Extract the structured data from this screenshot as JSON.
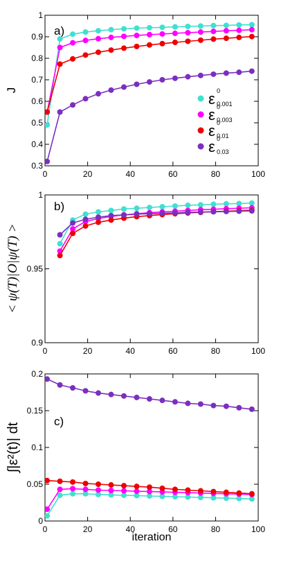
{
  "chart_data": [
    {
      "type": "line",
      "panel_label": "a)",
      "xlabel": "",
      "ylabel": "J",
      "xlim": [
        0,
        100
      ],
      "ylim": [
        0.3,
        1
      ],
      "xticks": [
        "0",
        "20",
        "40",
        "60",
        "80",
        "100"
      ],
      "yticks": [
        "0.3",
        "0.4",
        "0.5",
        "0.6",
        "0.7",
        "0.8",
        "0.9",
        "1"
      ],
      "legend_position": "right-middle",
      "series": [
        {
          "name": "ε0_0.001",
          "color": "#40e0d0",
          "x": [
            1,
            7,
            13,
            19,
            25,
            31,
            37,
            43,
            49,
            55,
            61,
            67,
            73,
            79,
            85,
            91,
            97
          ],
          "y": [
            0.49,
            0.89,
            0.912,
            0.922,
            0.928,
            0.933,
            0.937,
            0.94,
            0.942,
            0.944,
            0.946,
            0.948,
            0.95,
            0.952,
            0.953,
            0.955,
            0.956
          ]
        },
        {
          "name": "ε0_0.003",
          "color": "#ff00ff",
          "x": [
            1,
            7,
            13,
            19,
            25,
            31,
            37,
            43,
            49,
            55,
            61,
            67,
            73,
            79,
            85,
            91,
            97
          ],
          "y": [
            0.55,
            0.85,
            0.872,
            0.883,
            0.891,
            0.897,
            0.902,
            0.906,
            0.91,
            0.913,
            0.916,
            0.919,
            0.922,
            0.925,
            0.928,
            0.93,
            0.933
          ]
        },
        {
          "name": "ε0_0.01",
          "color": "#ee0000",
          "x": [
            1,
            7,
            13,
            19,
            25,
            31,
            37,
            43,
            49,
            55,
            61,
            67,
            73,
            79,
            85,
            91,
            97
          ],
          "y": [
            0.55,
            0.773,
            0.797,
            0.815,
            0.828,
            0.838,
            0.847,
            0.855,
            0.862,
            0.868,
            0.874,
            0.879,
            0.884,
            0.889,
            0.893,
            0.897,
            0.901
          ]
        },
        {
          "name": "ε0_0.03",
          "color": "#7b2fbe",
          "x": [
            1,
            7,
            13,
            19,
            25,
            31,
            37,
            43,
            49,
            55,
            61,
            67,
            73,
            79,
            85,
            91,
            97
          ],
          "y": [
            0.32,
            0.55,
            0.583,
            0.612,
            0.635,
            0.652,
            0.666,
            0.679,
            0.69,
            0.7,
            0.707,
            0.714,
            0.72,
            0.726,
            0.731,
            0.735,
            0.74
          ]
        }
      ]
    },
    {
      "type": "line",
      "panel_label": "b)",
      "xlabel": "",
      "ylabel": "< ψ(T)|O|ψ(T) >",
      "xlim": [
        0,
        100
      ],
      "ylim": [
        0.9,
        1
      ],
      "xticks": [
        "0",
        "20",
        "40",
        "60",
        "80",
        "100"
      ],
      "yticks": [
        "0.9",
        "0.95",
        "1"
      ],
      "series": [
        {
          "name": "ε0_0.001",
          "color": "#40e0d0",
          "x": [
            7,
            13,
            19,
            25,
            31,
            37,
            43,
            49,
            55,
            61,
            67,
            73,
            79,
            85,
            91,
            97
          ],
          "y": [
            0.967,
            0.983,
            0.987,
            0.9885,
            0.9895,
            0.9905,
            0.991,
            0.9915,
            0.992,
            0.9925,
            0.993,
            0.9933,
            0.9937,
            0.994,
            0.9942,
            0.9945
          ]
        },
        {
          "name": "ε0_0.003",
          "color": "#ff00ff",
          "x": [
            7,
            13,
            19,
            25,
            31,
            37,
            43,
            49,
            55,
            61,
            67,
            73,
            79,
            85,
            91,
            97
          ],
          "y": [
            0.962,
            0.977,
            0.982,
            0.984,
            0.9855,
            0.9865,
            0.9873,
            0.988,
            0.9885,
            0.989,
            0.9895,
            0.99,
            0.9903,
            0.9907,
            0.991,
            0.9913
          ]
        },
        {
          "name": "ε0_0.01",
          "color": "#ee0000",
          "x": [
            7,
            13,
            19,
            25,
            31,
            37,
            43,
            49,
            55,
            61,
            67,
            73,
            79,
            85,
            91,
            97
          ],
          "y": [
            0.959,
            0.974,
            0.979,
            0.9815,
            0.983,
            0.9843,
            0.9853,
            0.986,
            0.9867,
            0.9873,
            0.9878,
            0.9882,
            0.9887,
            0.989,
            0.9893,
            0.9897
          ]
        },
        {
          "name": "ε0_0.03",
          "color": "#7b2fbe",
          "x": [
            7,
            13,
            19,
            25,
            31,
            37,
            43,
            49,
            55,
            61,
            67,
            73,
            79,
            85,
            91,
            97
          ],
          "y": [
            0.973,
            0.981,
            0.9835,
            0.985,
            0.986,
            0.9865,
            0.987,
            0.9873,
            0.9876,
            0.9879,
            0.9882,
            0.9884,
            0.9886,
            0.9888,
            0.989,
            0.9892
          ]
        }
      ]
    },
    {
      "type": "line",
      "panel_label": "c)",
      "xlabel": "iteration",
      "ylabel": "∫|ε²(t)| dt",
      "xlim": [
        0,
        100
      ],
      "ylim": [
        0,
        0.2
      ],
      "xticks": [
        "0",
        "20",
        "40",
        "60",
        "80",
        "100"
      ],
      "yticks": [
        "0",
        "0.05",
        "0.1",
        "0.15",
        "0.2"
      ],
      "series": [
        {
          "name": "ε0_0.001",
          "color": "#40e0d0",
          "x": [
            1,
            7,
            13,
            19,
            25,
            31,
            37,
            43,
            49,
            55,
            61,
            67,
            73,
            79,
            85,
            91,
            97
          ],
          "y": [
            0.007,
            0.035,
            0.037,
            0.037,
            0.036,
            0.0355,
            0.035,
            0.0345,
            0.034,
            0.0335,
            0.033,
            0.0325,
            0.032,
            0.0315,
            0.031,
            0.0305,
            0.03
          ]
        },
        {
          "name": "ε0_0.003",
          "color": "#ff00ff",
          "x": [
            1,
            7,
            13,
            19,
            25,
            31,
            37,
            43,
            49,
            55,
            61,
            67,
            73,
            79,
            85,
            91,
            97
          ],
          "y": [
            0.016,
            0.043,
            0.044,
            0.043,
            0.042,
            0.0415,
            0.041,
            0.0405,
            0.04,
            0.0395,
            0.039,
            0.0385,
            0.038,
            0.0375,
            0.037,
            0.0365,
            0.036
          ]
        },
        {
          "name": "ε0_0.01",
          "color": "#ee0000",
          "x": [
            1,
            7,
            13,
            19,
            25,
            31,
            37,
            43,
            49,
            55,
            61,
            67,
            73,
            79,
            85,
            91,
            97
          ],
          "y": [
            0.055,
            0.054,
            0.053,
            0.051,
            0.05,
            0.049,
            0.048,
            0.047,
            0.046,
            0.0445,
            0.043,
            0.042,
            0.041,
            0.04,
            0.039,
            0.038,
            0.037
          ]
        },
        {
          "name": "ε0_0.03",
          "color": "#7b2fbe",
          "x": [
            1,
            7,
            13,
            19,
            25,
            31,
            37,
            43,
            49,
            55,
            61,
            67,
            73,
            79,
            85,
            91,
            97
          ],
          "y": [
            0.193,
            0.185,
            0.181,
            0.177,
            0.174,
            0.172,
            0.17,
            0.168,
            0.166,
            0.164,
            0.162,
            0.16,
            0.159,
            0.157,
            0.156,
            0.154,
            0.152
          ]
        }
      ]
    }
  ],
  "legend": [
    {
      "base": "ε",
      "sup": "0",
      "sub": "0.001",
      "color": "#40e0d0"
    },
    {
      "base": "ε",
      "sup": "0",
      "sub": "0.003",
      "color": "#ff00ff"
    },
    {
      "base": "ε",
      "sup": "0",
      "sub": "0.01",
      "color": "#ee0000"
    },
    {
      "base": "ε",
      "sup": "0",
      "sub": "0.03",
      "color": "#7b2fbe"
    }
  ]
}
